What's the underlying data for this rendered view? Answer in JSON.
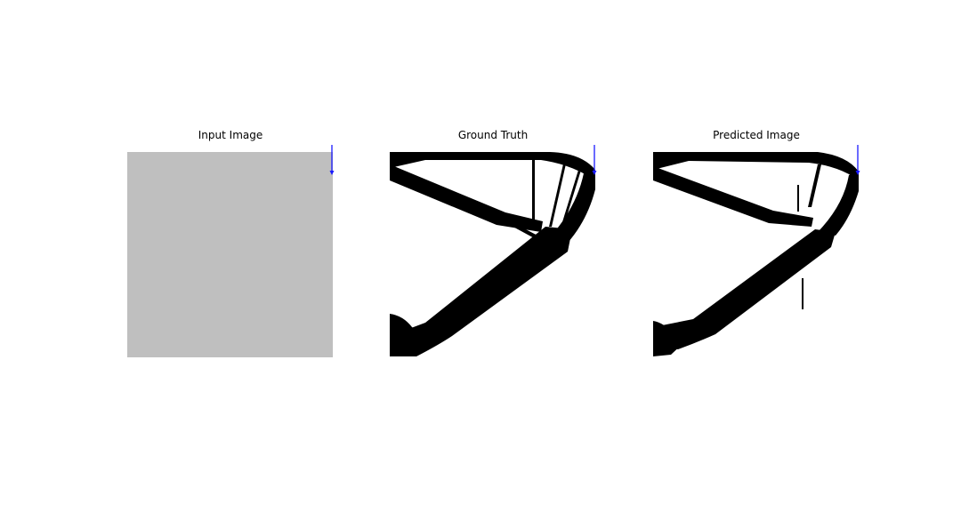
{
  "figure": {
    "panels": [
      {
        "title": "Input Image"
      },
      {
        "title": "Ground Truth"
      },
      {
        "title": "Predicted Image"
      }
    ]
  },
  "colors": {
    "background": "#ffffff",
    "input_fill": "#bfbfbf",
    "material": "#000000",
    "load_arrow": "#1a1aff"
  }
}
